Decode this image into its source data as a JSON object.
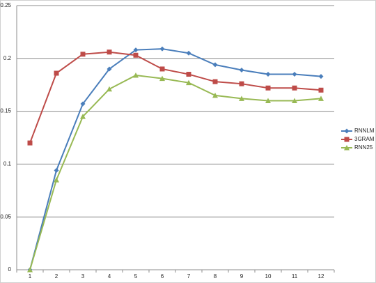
{
  "chart_data": {
    "type": "line",
    "categories": [
      "1",
      "2",
      "3",
      "4",
      "5",
      "6",
      "7",
      "8",
      "9",
      "10",
      "11",
      "12"
    ],
    "series": [
      {
        "name": "RNNLM",
        "color": "#4a7ebb",
        "marker": "diamond",
        "values": [
          0,
          0.094,
          0.157,
          0.19,
          0.208,
          0.209,
          0.205,
          0.194,
          0.189,
          0.185,
          0.185,
          0.183
        ]
      },
      {
        "name": "3GRAM",
        "color": "#be4b48",
        "marker": "square",
        "values": [
          0.12,
          0.186,
          0.204,
          0.206,
          0.203,
          0.19,
          0.185,
          0.178,
          0.176,
          0.172,
          0.172,
          0.17
        ]
      },
      {
        "name": "RNN25",
        "color": "#98b954",
        "marker": "triangle",
        "values": [
          0,
          0.085,
          0.145,
          0.171,
          0.184,
          0.181,
          0.177,
          0.165,
          0.162,
          0.16,
          0.16,
          0.162
        ]
      }
    ],
    "ylim": [
      0,
      0.25
    ],
    "yticks": [
      0,
      0.05,
      0.1,
      0.15,
      0.2,
      0.25
    ],
    "grid": true,
    "legend": "right"
  }
}
